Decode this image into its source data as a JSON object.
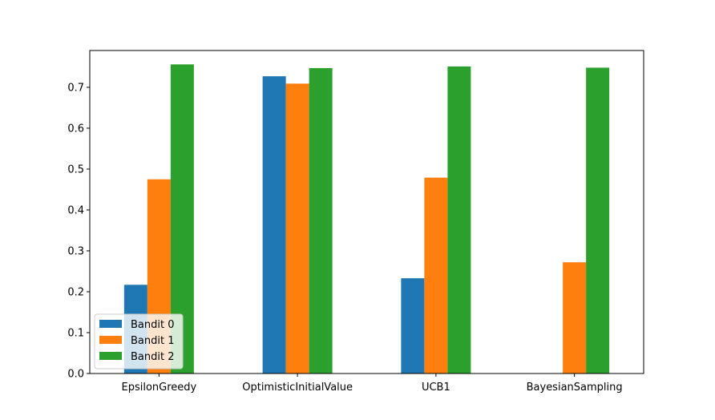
{
  "chart_data": {
    "type": "bar",
    "categories": [
      "EpsilonGreedy",
      "OptimisticInitialValue",
      "UCB1",
      "BayesianSampling"
    ],
    "series": [
      {
        "name": "Bandit 0",
        "color": "#1f77b4",
        "values": [
          0.217,
          0.727,
          0.233,
          0.0
        ]
      },
      {
        "name": "Bandit 1",
        "color": "#ff7f0e",
        "values": [
          0.475,
          0.709,
          0.479,
          0.272
        ]
      },
      {
        "name": "Bandit 2",
        "color": "#2ca02c",
        "values": [
          0.756,
          0.747,
          0.751,
          0.748
        ]
      }
    ],
    "ylim": [
      0,
      0.79
    ],
    "yticks": [
      "0.0",
      "0.1",
      "0.2",
      "0.3",
      "0.4",
      "0.5",
      "0.6",
      "0.7"
    ],
    "title": "",
    "xlabel": "",
    "ylabel": "",
    "grid": false,
    "legend_placement": "lower-left"
  }
}
